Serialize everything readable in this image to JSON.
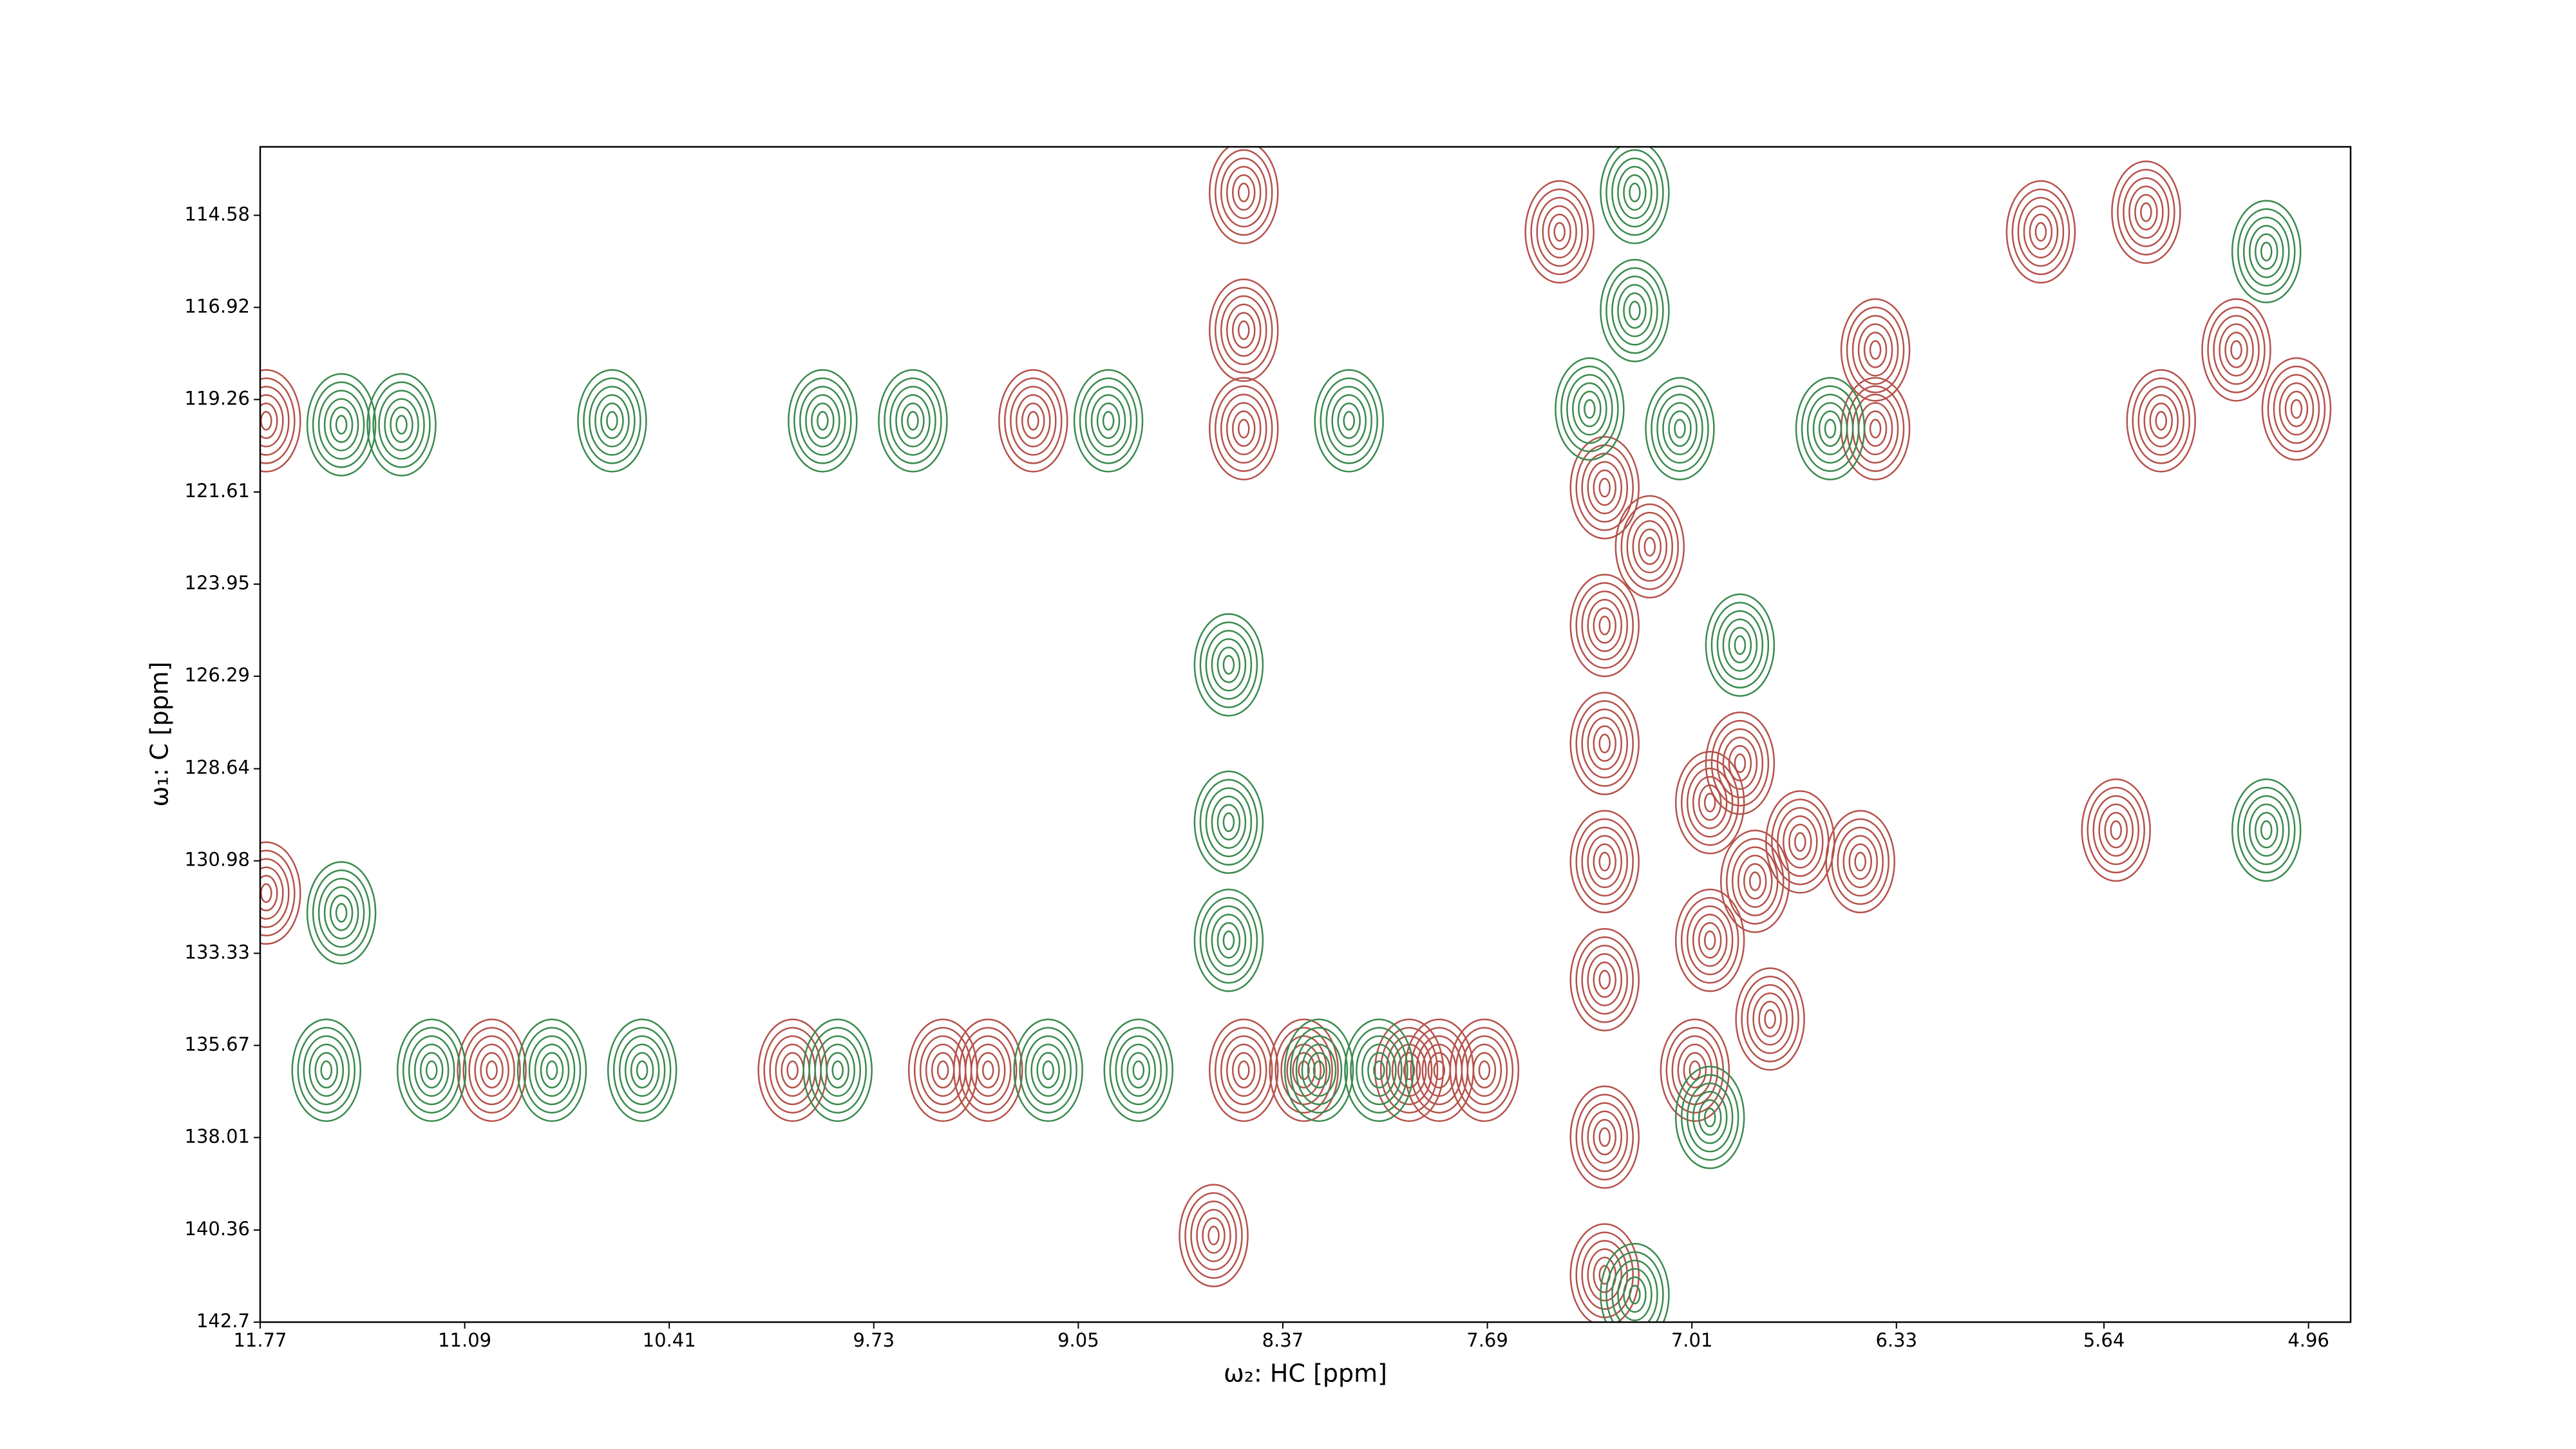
{
  "chart_data": {
    "type": "contour",
    "xlabel": "ω₂: HC [ppm]",
    "ylabel": "ω₁: C [ppm]",
    "xlim": [
      11.77,
      4.82
    ],
    "ylim": [
      142.7,
      112.84
    ],
    "xticks": [
      11.77,
      11.09,
      10.41,
      9.73,
      9.05,
      8.37,
      7.69,
      7.01,
      6.33,
      5.64,
      4.96
    ],
    "yticks": [
      114.58,
      116.92,
      119.26,
      121.61,
      123.95,
      126.29,
      128.64,
      130.98,
      133.33,
      135.67,
      138.01,
      140.36,
      142.7
    ],
    "series": [
      {
        "color": "#b5524a",
        "x": [
          8.5,
          8.5,
          8.5,
          7.45,
          7.3,
          7.3,
          7.3,
          7.3,
          7.3,
          7.3,
          7.3,
          7.15,
          6.95,
          6.95,
          6.85,
          6.8,
          6.65,
          6.45,
          6.4,
          6.4,
          5.6,
          5.2,
          5.0,
          5.85,
          5.5,
          5.45,
          11.0,
          10.0,
          9.5,
          9.35,
          8.5,
          8.3,
          7.95,
          7.85,
          7.7,
          11.75,
          11.75,
          8.6,
          9.2,
          7.0,
          6.75
        ],
        "y": [
          114.0,
          117.5,
          120.0,
          115.0,
          121.5,
          125.0,
          128.0,
          131.0,
          134.0,
          138.0,
          141.5,
          123.0,
          129.5,
          133.0,
          128.5,
          131.5,
          130.5,
          131.0,
          118.0,
          120.0,
          130.2,
          118.0,
          119.5,
          115.0,
          114.5,
          119.8,
          136.3,
          136.3,
          136.3,
          136.3,
          136.3,
          136.3,
          136.3,
          136.3,
          136.3,
          131.8,
          119.8,
          140.5,
          119.8,
          136.3,
          135.0
        ]
      },
      {
        "color": "#3a8a4e",
        "x": [
          11.5,
          11.3,
          10.6,
          9.9,
          9.6,
          11.5,
          11.55,
          11.2,
          10.8,
          10.5,
          9.85,
          9.15,
          8.85,
          8.25,
          8.05,
          7.2,
          7.2,
          7.2,
          8.55,
          8.55,
          8.55,
          8.95,
          8.15,
          7.35,
          7.05,
          6.55,
          5.1,
          5.1,
          6.85,
          6.95
        ],
        "y": [
          119.9,
          119.9,
          119.8,
          119.8,
          119.8,
          132.3,
          136.3,
          136.3,
          136.3,
          136.3,
          136.3,
          136.3,
          136.3,
          136.3,
          136.3,
          114.0,
          117.0,
          142.0,
          126.0,
          130.0,
          133.0,
          119.8,
          119.8,
          119.5,
          120.0,
          120.0,
          130.2,
          115.5,
          125.5,
          137.5
        ]
      }
    ]
  }
}
